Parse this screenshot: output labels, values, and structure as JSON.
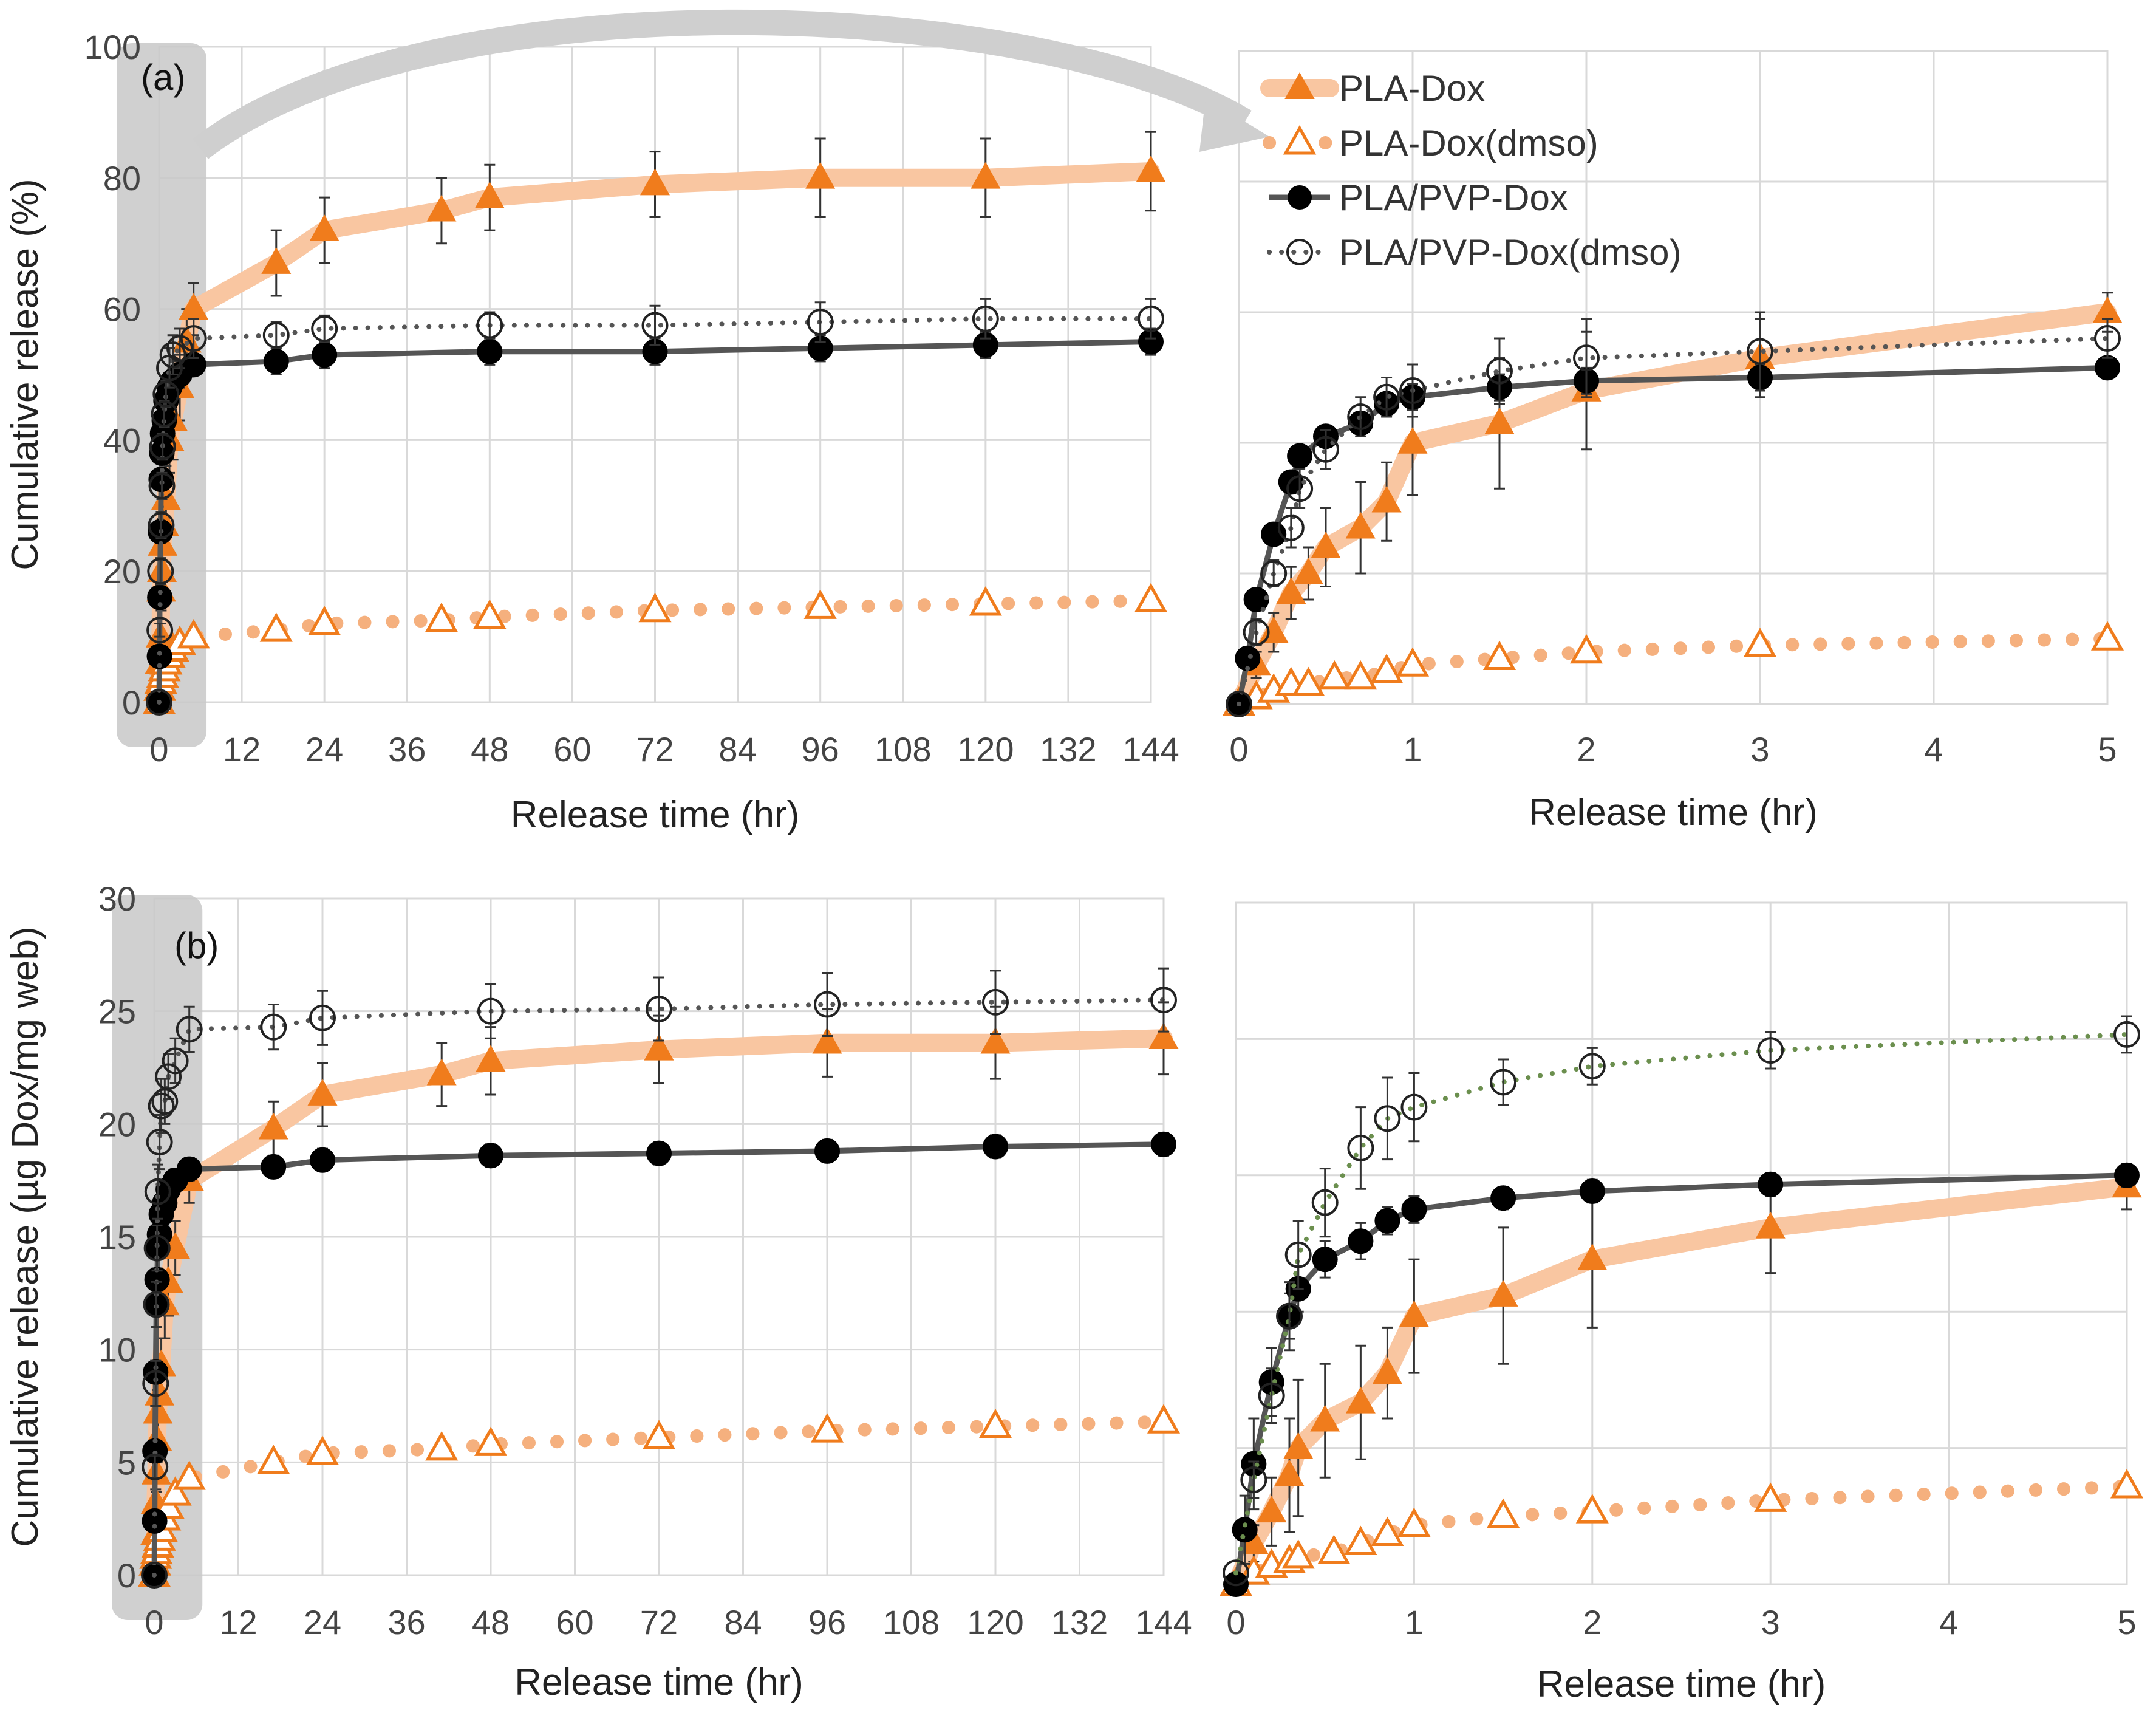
{
  "figure": {
    "legend": [
      {
        "name": "PLA-Dox",
        "style": "thick-light-line-filled-triangle"
      },
      {
        "name": "PLA-Dox(dmso)",
        "style": "dotted-open-triangle"
      },
      {
        "name": "PLA/PVP-Dox",
        "style": "solid-dark-line-filled-circle"
      },
      {
        "name": "PLA/PVP-Dox(dmso)",
        "style": "dotted-open-circle"
      }
    ],
    "colors": {
      "pla_line": "#f9c6a1",
      "pla_marker": "#f07c1c",
      "pla_dmso_dot": "#f5b07e",
      "pvp_line": "#555555",
      "pvp_marker": "#000000",
      "pvp_dmso_dot": "#555555",
      "pvp_dmso_dot_zoom_b": "#6b8f4e",
      "grid": "#d9d9d9",
      "highlight": "#c8c8c8"
    }
  },
  "chart_data": [
    {
      "id": "a-full",
      "type": "line",
      "panel_label": "(a)",
      "xlabel": "Release time (hr)",
      "ylabel": "Cumulative release  (%)",
      "xlim": [
        0,
        144
      ],
      "ylim": [
        0,
        100
      ],
      "xticks": [
        0,
        12,
        24,
        36,
        48,
        60,
        72,
        84,
        96,
        108,
        120,
        132,
        144
      ],
      "yticks": [
        0,
        20,
        40,
        60,
        80,
        100
      ],
      "highlight_x_range": [
        0,
        6
      ],
      "series": [
        {
          "name": "PLA-Dox",
          "x": [
            0,
            0.1,
            0.2,
            0.3,
            0.4,
            0.5,
            0.75,
            1,
            1.5,
            2,
            3,
            4,
            5,
            17,
            24,
            41,
            48,
            72,
            96,
            120,
            144
          ],
          "y": [
            0,
            6,
            10,
            17,
            20,
            24,
            27,
            31,
            40,
            43,
            48,
            55,
            60,
            67,
            72,
            75,
            77,
            79,
            80,
            80,
            81
          ],
          "err": [
            0,
            1,
            2,
            3,
            3,
            4,
            4,
            5,
            5,
            6,
            5,
            5,
            4,
            5,
            5,
            5,
            5,
            5,
            6,
            6,
            6
          ]
        },
        {
          "name": "PLA-Dox(dmso)",
          "x": [
            0,
            0.1,
            0.2,
            0.3,
            0.5,
            0.75,
            1,
            1.5,
            2,
            3,
            5,
            17,
            24,
            41,
            48,
            72,
            96,
            120,
            144
          ],
          "y": [
            0,
            2,
            3,
            3,
            4,
            5,
            6,
            7,
            8,
            9,
            10,
            11,
            12,
            12.5,
            13,
            14,
            14.5,
            15,
            15.5
          ],
          "err": [
            0,
            0.5,
            0.5,
            0.5,
            0.5,
            0.5,
            0.5,
            0.5,
            0.5,
            0.5,
            0.5,
            1,
            1,
            1,
            1,
            1,
            1,
            1,
            1
          ]
        },
        {
          "name": "PLA/PVP-Dox",
          "x": [
            0,
            0.05,
            0.1,
            0.2,
            0.3,
            0.4,
            0.5,
            0.75,
            1,
            1.5,
            2,
            3,
            5,
            17,
            24,
            48,
            72,
            96,
            120,
            144
          ],
          "y": [
            0,
            7,
            16,
            26,
            34,
            38,
            41,
            43,
            46,
            48,
            49,
            50,
            51.5,
            52,
            53,
            53.5,
            53.5,
            54,
            54.5,
            55
          ],
          "err": [
            0,
            1,
            1,
            1,
            1,
            1,
            1,
            1,
            2,
            2,
            2,
            2,
            1.5,
            2,
            2,
            2,
            2,
            2,
            2,
            2
          ]
        },
        {
          "name": "PLA/PVP-Dox(dmso)",
          "x": [
            0,
            0.1,
            0.2,
            0.3,
            0.4,
            0.5,
            0.75,
            1,
            1.5,
            2,
            3,
            5,
            17,
            24,
            48,
            72,
            96,
            120,
            144
          ],
          "y": [
            0,
            11,
            20,
            27,
            33,
            39,
            44,
            47,
            51,
            53,
            54,
            55.5,
            56,
            57,
            57.5,
            57.5,
            58,
            58.5,
            58.5
          ],
          "err": [
            0,
            1,
            2,
            2,
            2,
            2,
            2,
            2,
            3,
            3,
            3,
            3,
            2,
            2,
            2,
            3,
            3,
            3,
            3
          ]
        }
      ]
    },
    {
      "id": "a-zoom",
      "type": "line",
      "xlabel": "Release time (hr)",
      "ylabel": "",
      "xlim": [
        0,
        5
      ],
      "ylim": [
        0,
        100
      ],
      "xticks": [
        0,
        1,
        2,
        3,
        4,
        5
      ],
      "yticks": [],
      "series": [
        {
          "name": "PLA-Dox",
          "x": [
            0,
            0.1,
            0.2,
            0.3,
            0.4,
            0.5,
            0.7,
            0.85,
            1,
            1.5,
            2,
            3,
            5
          ],
          "y": [
            0,
            6,
            11,
            17,
            20,
            24,
            27,
            31,
            40,
            43,
            48,
            53,
            60
          ],
          "err": [
            0,
            2,
            3,
            4,
            4,
            6,
            7,
            6,
            8,
            10,
            9,
            6,
            3
          ]
        },
        {
          "name": "PLA-Dox(dmso)",
          "x": [
            0,
            0.1,
            0.2,
            0.3,
            0.4,
            0.55,
            0.7,
            0.85,
            1,
            1.5,
            2,
            3,
            5
          ],
          "y": [
            0,
            1,
            2,
            3,
            3,
            4,
            4,
            5,
            6,
            7,
            8,
            9,
            10
          ],
          "err": [
            0,
            0.5,
            0.5,
            0.5,
            0.5,
            0.5,
            0.5,
            0.5,
            0.5,
            0.5,
            0.5,
            0.5,
            0.5
          ]
        },
        {
          "name": "PLA/PVP-Dox",
          "x": [
            0,
            0.05,
            0.1,
            0.2,
            0.3,
            0.35,
            0.5,
            0.7,
            0.85,
            1,
            1.5,
            2,
            3,
            5
          ],
          "y": [
            0,
            7,
            16,
            26,
            34,
            38,
            41,
            43,
            46,
            47,
            48.5,
            49.5,
            50,
            51.5
          ],
          "err": [
            0,
            1,
            1,
            1,
            1,
            1,
            1,
            1,
            1,
            2,
            2,
            2,
            2,
            1.5
          ]
        },
        {
          "name": "PLA/PVP-Dox(dmso)",
          "x": [
            0,
            0.1,
            0.2,
            0.3,
            0.35,
            0.5,
            0.7,
            0.85,
            1,
            1.5,
            2,
            3,
            5
          ],
          "y": [
            0,
            11,
            20,
            27,
            33,
            39,
            44,
            47,
            48,
            51,
            53,
            54,
            56
          ],
          "err": [
            0,
            2,
            2,
            3,
            3,
            3,
            3,
            3,
            4,
            5,
            6,
            6,
            3
          ]
        }
      ]
    },
    {
      "id": "b-full",
      "type": "line",
      "panel_label": "(b)",
      "xlabel": "Release time (hr)",
      "ylabel": "Cumulative release  (µg Dox/mg web)",
      "xlim": [
        0,
        144
      ],
      "ylim": [
        0,
        30
      ],
      "xticks": [
        0,
        12,
        24,
        36,
        48,
        60,
        72,
        84,
        96,
        108,
        120,
        132,
        144
      ],
      "yticks": [
        0,
        5,
        10,
        15,
        20,
        25,
        30
      ],
      "highlight_x_range": [
        0,
        6
      ],
      "series": [
        {
          "name": "PLA-Dox",
          "x": [
            0,
            0.1,
            0.2,
            0.3,
            0.4,
            0.5,
            0.75,
            1,
            1.5,
            2,
            3,
            5,
            17,
            24,
            41,
            48,
            72,
            96,
            120,
            144
          ],
          "y": [
            0,
            1.8,
            3.2,
            4.5,
            6,
            7.2,
            8,
            9.3,
            12,
            13,
            14.5,
            17.5,
            19.8,
            21.3,
            22.2,
            22.8,
            23.3,
            23.6,
            23.6,
            23.8
          ],
          "err": [
            0,
            0.5,
            0.6,
            0.8,
            1,
            1,
            1.2,
            1.2,
            1.5,
            1.5,
            1.2,
            1,
            1.2,
            1.4,
            1.4,
            1.5,
            1.5,
            1.5,
            1.6,
            1.6
          ]
        },
        {
          "name": "PLA-Dox(dmso)",
          "x": [
            0,
            0.1,
            0.2,
            0.3,
            0.5,
            0.75,
            1,
            1.5,
            2,
            3,
            5,
            17,
            24,
            41,
            48,
            72,
            96,
            120,
            144
          ],
          "y": [
            0,
            0.5,
            0.8,
            1,
            1.3,
            1.6,
            2,
            2.5,
            3,
            3.6,
            4.3,
            5,
            5.4,
            5.6,
            5.8,
            6.1,
            6.4,
            6.6,
            6.8
          ],
          "err": [
            0,
            0.2,
            0.2,
            0.2,
            0.2,
            0.2,
            0.2,
            0.2,
            0.2,
            0.2,
            0.2,
            0.3,
            0.3,
            0.3,
            0.3,
            0.3,
            0.3,
            0.3,
            0.3
          ]
        },
        {
          "name": "PLA/PVP-Dox",
          "x": [
            0,
            0.05,
            0.1,
            0.2,
            0.3,
            0.4,
            0.5,
            0.75,
            1,
            1.5,
            2,
            3,
            5,
            17,
            24,
            48,
            72,
            96,
            120,
            144
          ],
          "y": [
            0,
            2.4,
            5.5,
            9,
            12,
            13.1,
            14.5,
            15.1,
            16,
            16.5,
            17.1,
            17.5,
            18,
            18.1,
            18.4,
            18.6,
            18.7,
            18.8,
            19,
            19.1
          ],
          "err": [
            0,
            0.3,
            0.4,
            0.5,
            0.5,
            0.5,
            0.5,
            0.5,
            0.5,
            0.5,
            0.5,
            0.5,
            0.5,
            0.5,
            0.5,
            0.5,
            0.5,
            0.5,
            0.5,
            0.5
          ]
        },
        {
          "name": "PLA/PVP-Dox(dmso)",
          "x": [
            0,
            0.1,
            0.2,
            0.3,
            0.4,
            0.5,
            0.75,
            1,
            1.5,
            2,
            3,
            5,
            17,
            24,
            48,
            72,
            96,
            120,
            144
          ],
          "y": [
            0,
            4.8,
            8.5,
            12,
            14.5,
            17,
            19.2,
            20.8,
            21,
            22.1,
            22.8,
            24.2,
            24.3,
            24.7,
            25,
            25.1,
            25.3,
            25.4,
            25.5
          ],
          "err": [
            0,
            0.5,
            1,
            1,
            1,
            1.2,
            1.2,
            1.2,
            1,
            1,
            1,
            1,
            1,
            1.2,
            1.2,
            1.4,
            1.4,
            1.4,
            1.4
          ]
        }
      ]
    },
    {
      "id": "b-zoom",
      "type": "line",
      "xlabel": "Release time (hr)",
      "ylabel": "",
      "xlim": [
        0,
        5
      ],
      "ylim": [
        0,
        30
      ],
      "xticks": [
        0,
        1,
        2,
        3,
        4,
        5
      ],
      "yticks": [],
      "series": [
        {
          "name": "PLA-Dox",
          "x": [
            0,
            0.1,
            0.2,
            0.3,
            0.35,
            0.5,
            0.7,
            0.85,
            1,
            1.5,
            2,
            3,
            5
          ],
          "y": [
            0,
            1.8,
            3.2,
            4.8,
            6,
            7.2,
            8,
            9.3,
            11.8,
            12.7,
            14.3,
            15.7,
            17.5
          ],
          "err": [
            0,
            0.8,
            1.5,
            2.5,
            3,
            2.5,
            2.5,
            2,
            2.5,
            3,
            3,
            2,
            1
          ]
        },
        {
          "name": "PLA-Dox(dmso)",
          "x": [
            0,
            0.1,
            0.2,
            0.3,
            0.35,
            0.55,
            0.7,
            0.85,
            1,
            1.5,
            2,
            3,
            5
          ],
          "y": [
            0,
            0.5,
            0.8,
            1,
            1.2,
            1.4,
            1.8,
            2.2,
            2.6,
            3,
            3.2,
            3.7,
            4.3
          ],
          "err": [
            0,
            0.2,
            0.2,
            0.2,
            0.2,
            0.2,
            0.2,
            0.2,
            0.2,
            0.2,
            0.2,
            0.2,
            0.2
          ]
        },
        {
          "name": "PLA/PVP-Dox",
          "x": [
            0,
            0.05,
            0.1,
            0.2,
            0.3,
            0.35,
            0.5,
            0.7,
            0.85,
            1,
            1.5,
            2,
            3,
            5
          ],
          "y": [
            0,
            2.4,
            5.3,
            8.9,
            11.8,
            13,
            14.3,
            15.1,
            16,
            16.5,
            17,
            17.3,
            17.6,
            18
          ],
          "err": [
            0,
            1.5,
            2,
            1.5,
            1,
            1,
            0.8,
            0.8,
            0.6,
            0.6,
            0.5,
            0.5,
            0.5,
            0.5
          ]
        },
        {
          "name": "PLA/PVP-Dox(dmso)",
          "x": [
            0,
            0.1,
            0.2,
            0.3,
            0.35,
            0.5,
            0.7,
            0.85,
            1,
            1.5,
            2,
            3,
            5
          ],
          "y": [
            0.5,
            4.6,
            8.3,
            11.8,
            14.5,
            16.8,
            19.2,
            20.5,
            21,
            22.1,
            22.8,
            23.5,
            24.2
          ],
          "err": [
            0,
            0.8,
            1.2,
            1.5,
            1.5,
            1.5,
            1.8,
            1.8,
            1.5,
            1,
            0.8,
            0.8,
            0.8
          ]
        }
      ]
    }
  ]
}
